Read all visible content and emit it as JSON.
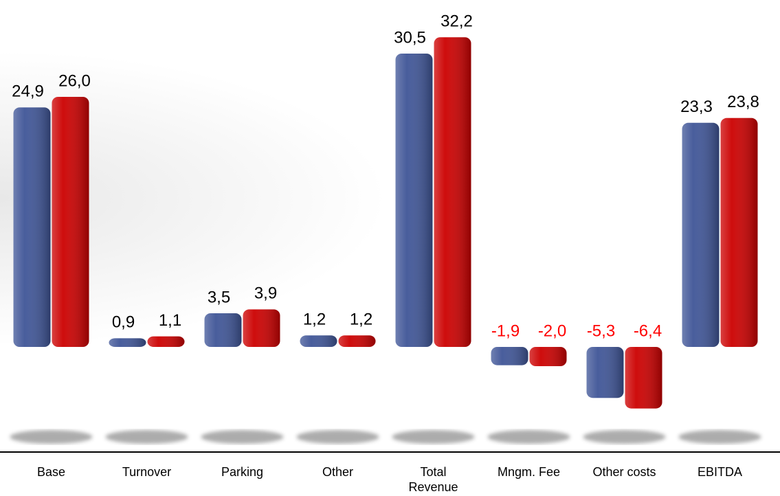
{
  "chart_data": {
    "type": "bar",
    "categories": [
      "Base",
      "Turnover",
      "Parking",
      "Other",
      "Total\nRevenue",
      "Mngm. Fee",
      "Other costs",
      "EBITDA"
    ],
    "series": [
      {
        "color": "#3f5597",
        "values": [
          24.9,
          0.9,
          3.5,
          1.2,
          30.5,
          -1.9,
          -5.3,
          23.3
        ],
        "value_labels": [
          "24,9",
          "0,9",
          "3,5",
          "1,2",
          "30,5",
          "-1,9",
          "-5,3",
          "23,3"
        ]
      },
      {
        "color": "#cc0000",
        "values": [
          26.0,
          1.1,
          3.9,
          1.2,
          32.2,
          -2.0,
          -6.4,
          23.8
        ],
        "value_labels": [
          "26,0",
          "1,1",
          "3,9",
          "1,2",
          "32,2",
          "-2,0",
          "-6,4",
          "23,8"
        ]
      }
    ],
    "label_color": "#000000",
    "negative_label_color": "#ff0000"
  }
}
